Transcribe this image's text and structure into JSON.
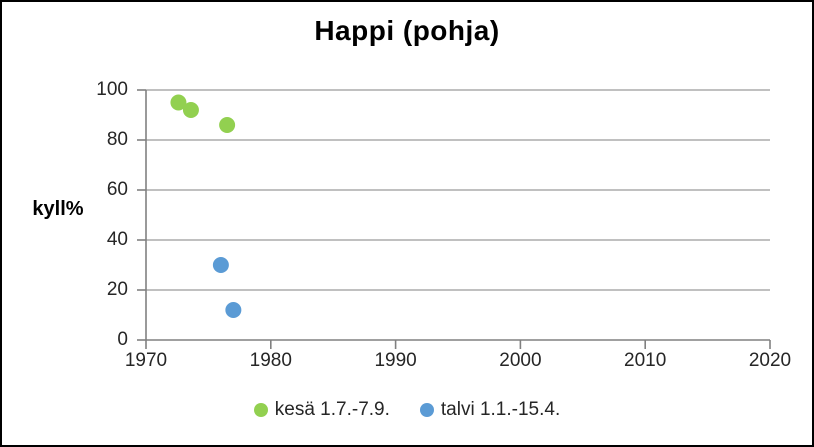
{
  "chart_data": {
    "type": "scatter",
    "title": "Happi (pohja)",
    "ylabel": "kyll%",
    "xlabel": "",
    "xlim": [
      1970,
      2020
    ],
    "ylim": [
      0,
      100
    ],
    "xticks": [
      1970,
      1980,
      1990,
      2000,
      2010,
      2020
    ],
    "yticks": [
      0,
      20,
      40,
      60,
      80,
      100
    ],
    "grid": "horizontal",
    "legend_position": "bottom",
    "series": [
      {
        "name": "kesä 1.7.-7.9.",
        "color": "#92d050",
        "points": [
          {
            "x": 1972.6,
            "y": 95
          },
          {
            "x": 1973.6,
            "y": 92
          },
          {
            "x": 1976.5,
            "y": 86
          }
        ]
      },
      {
        "name": "talvi 1.1.-15.4.",
        "color": "#5b9bd5",
        "points": [
          {
            "x": 1976.0,
            "y": 30
          },
          {
            "x": 1977.0,
            "y": 12
          }
        ]
      }
    ]
  },
  "colors": {
    "axis": "#808080",
    "gridline": "#9a9a9a",
    "tick_text": "#262626",
    "title_text": "#000000",
    "frame": "#000000",
    "background": "#ffffff"
  }
}
